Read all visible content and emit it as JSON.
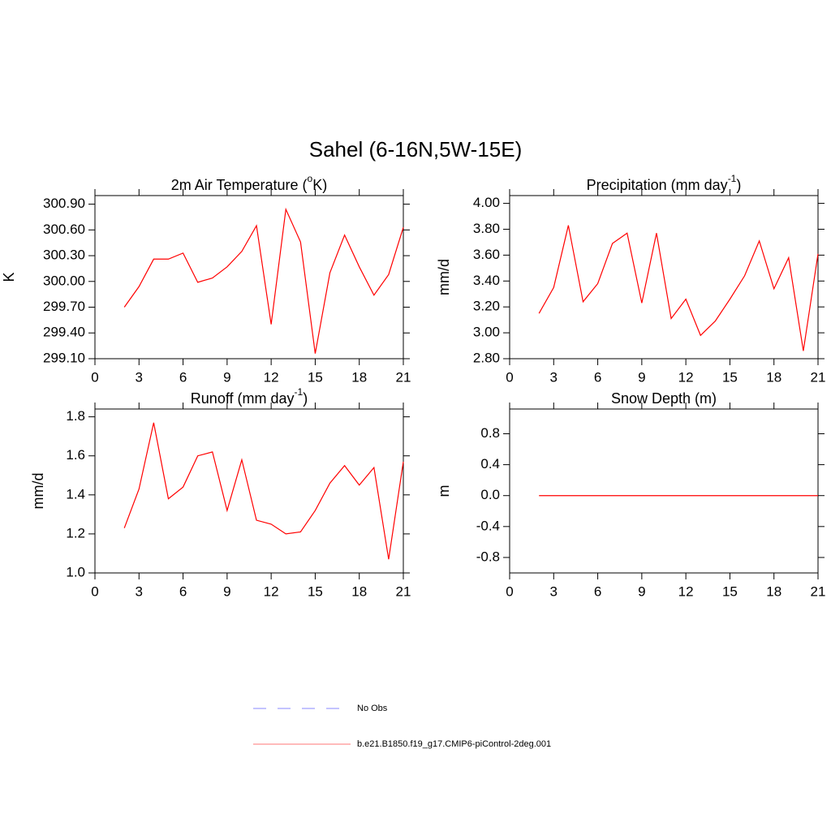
{
  "title": "Sahel (6-16N,5W-15E)",
  "chart_data": [
    {
      "type": "line",
      "title": [
        "2m Air Temperature (",
        "o",
        "K)"
      ],
      "ylabel": "K",
      "x": [
        2,
        3,
        4,
        5,
        6,
        7,
        8,
        9,
        10,
        11,
        12,
        13,
        14,
        15,
        16,
        17,
        18,
        19,
        20,
        21
      ],
      "series": [
        {
          "color": "#ff0000",
          "values": [
            299.7,
            299.94,
            300.26,
            300.26,
            300.33,
            299.99,
            300.04,
            300.17,
            300.35,
            300.65,
            299.5,
            300.84,
            300.46,
            299.16,
            300.1,
            300.54,
            300.17,
            299.84,
            300.08,
            300.63
          ]
        }
      ],
      "xlim": [
        0,
        21
      ],
      "xticks": [
        0,
        3,
        6,
        9,
        12,
        15,
        18,
        21
      ],
      "ylim": [
        299.1,
        301.0
      ],
      "yticks": [
        {
          "value": 299.1,
          "label": "299.10"
        },
        {
          "value": 299.4,
          "label": "299.40"
        },
        {
          "value": 299.7,
          "label": "299.70"
        },
        {
          "value": 300.0,
          "label": "300.00"
        },
        {
          "value": 300.3,
          "label": "300.30"
        },
        {
          "value": 300.6,
          "label": "300.60"
        },
        {
          "value": 300.9,
          "label": "300.90"
        }
      ]
    },
    {
      "type": "line",
      "title": [
        "Precipitation (mm day",
        "-1",
        ")"
      ],
      "ylabel": "mm/d",
      "x": [
        2,
        3,
        4,
        5,
        6,
        7,
        8,
        9,
        10,
        11,
        12,
        13,
        14,
        15,
        16,
        17,
        18,
        19,
        20,
        21
      ],
      "series": [
        {
          "color": "#ff0000",
          "values": [
            3.15,
            3.35,
            3.83,
            3.24,
            3.38,
            3.69,
            3.77,
            3.23,
            3.77,
            3.11,
            3.26,
            2.98,
            3.09,
            3.26,
            3.44,
            3.71,
            3.34,
            3.58,
            2.86,
            3.61
          ]
        }
      ],
      "xlim": [
        0,
        21
      ],
      "xticks": [
        0,
        3,
        6,
        9,
        12,
        15,
        18,
        21
      ],
      "ylim": [
        2.8,
        4.06
      ],
      "yticks": [
        {
          "value": 2.8,
          "label": "2.80"
        },
        {
          "value": 3.0,
          "label": "3.00"
        },
        {
          "value": 3.2,
          "label": "3.20"
        },
        {
          "value": 3.4,
          "label": "3.40"
        },
        {
          "value": 3.6,
          "label": "3.60"
        },
        {
          "value": 3.8,
          "label": "3.80"
        },
        {
          "value": 4.0,
          "label": "4.00"
        }
      ]
    },
    {
      "type": "line",
      "title": [
        "Runoff (mm day",
        "-1",
        ")"
      ],
      "ylabel": "mm/d",
      "x": [
        2,
        3,
        4,
        5,
        6,
        7,
        8,
        9,
        10,
        11,
        12,
        13,
        14,
        15,
        16,
        17,
        18,
        19,
        20,
        21
      ],
      "series": [
        {
          "color": "#ff0000",
          "values": [
            1.23,
            1.43,
            1.77,
            1.38,
            1.44,
            1.6,
            1.62,
            1.32,
            1.58,
            1.27,
            1.25,
            1.2,
            1.21,
            1.32,
            1.46,
            1.55,
            1.45,
            1.54,
            1.07,
            1.57
          ]
        }
      ],
      "xlim": [
        0,
        21
      ],
      "xticks": [
        0,
        3,
        6,
        9,
        12,
        15,
        18,
        21
      ],
      "ylim": [
        1.0,
        1.84
      ],
      "yticks": [
        {
          "value": 1.0,
          "label": "1.0"
        },
        1.2,
        1.4,
        1.6,
        1.8
      ]
    },
    {
      "type": "line",
      "title": [
        "Snow Depth (m)"
      ],
      "ylabel": "m",
      "x": [
        2,
        3,
        4,
        5,
        6,
        7,
        8,
        9,
        10,
        11,
        12,
        13,
        14,
        15,
        16,
        17,
        18,
        19,
        20,
        21
      ],
      "series": [
        {
          "color": "#ff0000",
          "values": [
            0,
            0,
            0,
            0,
            0,
            0,
            0,
            0,
            0,
            0,
            0,
            0,
            0,
            0,
            0,
            0,
            0,
            0,
            0,
            0
          ]
        }
      ],
      "xlim": [
        0,
        21
      ],
      "xticks": [
        0,
        3,
        6,
        9,
        12,
        15,
        18,
        21
      ],
      "ylim": [
        -1.0,
        1.12
      ],
      "yticks": [
        -0.8,
        -0.4,
        {
          "value": 0,
          "label": "0.0"
        },
        0.4,
        0.8
      ]
    }
  ],
  "legend": [
    {
      "name": "No Obs",
      "color": "#a0a0ff",
      "style": "dashed"
    },
    {
      "name": "b.e21.B1850.f19_g17.CMIP6-piControl-2deg.001",
      "color": "#ff9090",
      "style": "solid"
    }
  ]
}
